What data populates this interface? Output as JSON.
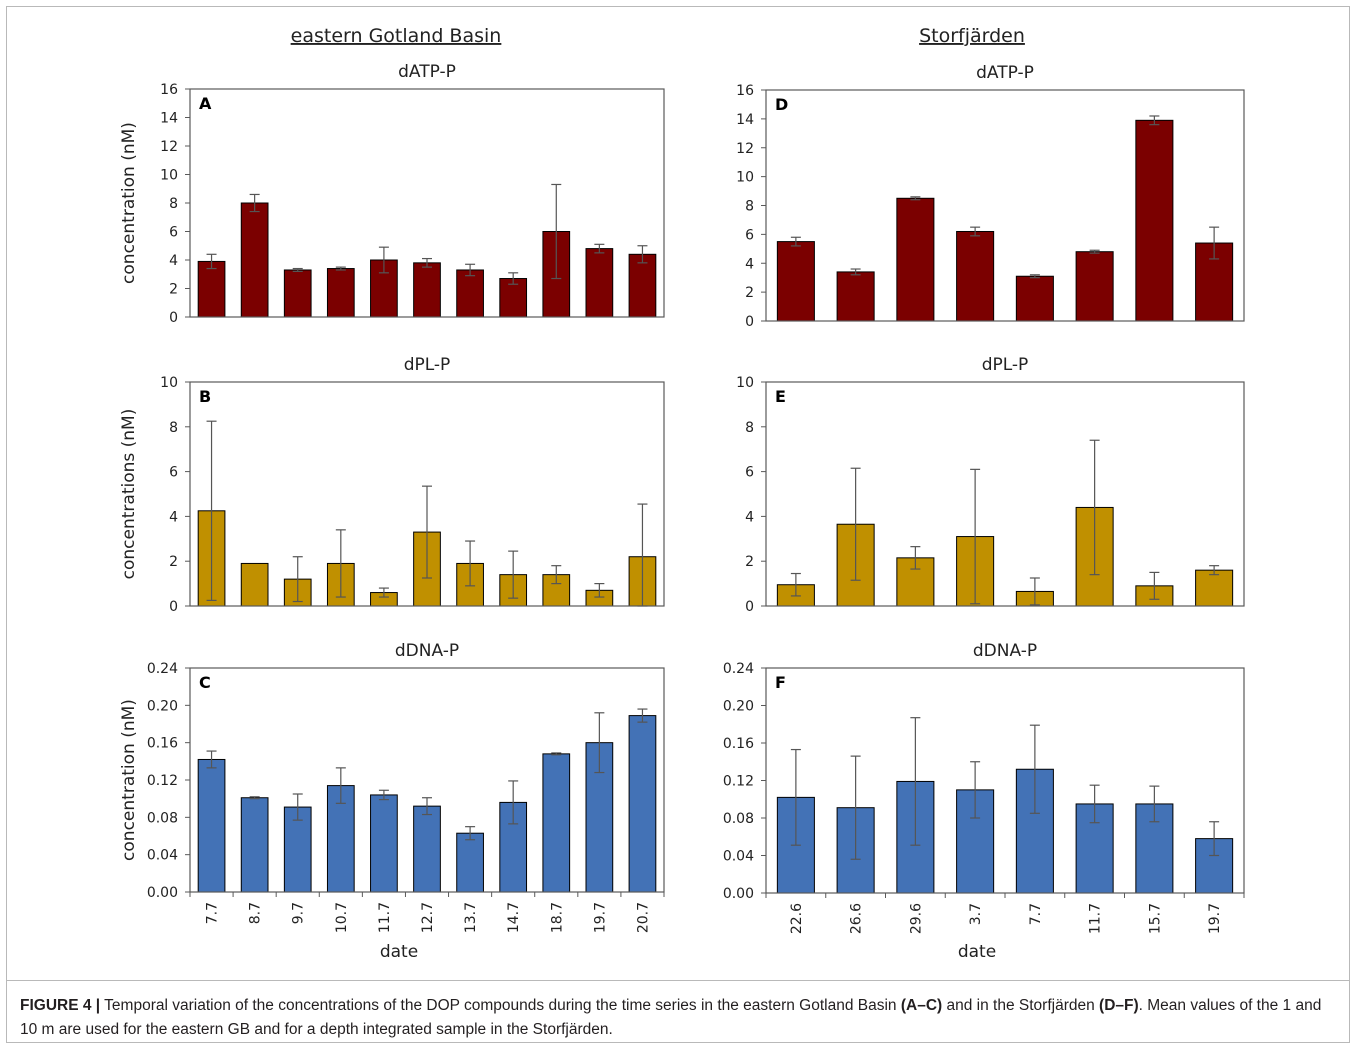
{
  "figure": {
    "group_titles": [
      "eastern Gotland Basin",
      "Storfjärden"
    ],
    "caption": {
      "label": "FIGURE 4 |",
      "text_1": " Temporal variation of the concentrations of the DOP compounds during the time series in the eastern Gotland Basin ",
      "ref_1": "(A–C)",
      "text_2": " and in the Storfjärden ",
      "ref_2": "(D–F)",
      "text_3": ". Mean values of the 1 and 10 m are used for the eastern GB and for a depth integrated sample in the Storfjärden."
    }
  },
  "colors": {
    "dATP": "#7b0000",
    "dPL": "#c09000",
    "dDNA": "#4372b6",
    "error_bar": "#555555",
    "frame": "#b9b9b9"
  },
  "chart_data": [
    {
      "id": "A",
      "panel_label": "A",
      "type": "bar",
      "title": "dATP-P",
      "ylabel": "concentration (nM)",
      "xlabel": "",
      "categories": [
        "7.7",
        "8.7",
        "9.7",
        "10.7",
        "11.7",
        "12.7",
        "13.7",
        "14.7",
        "18.7",
        "19.7",
        "20.7"
      ],
      "values": [
        3.9,
        8.0,
        3.3,
        3.4,
        4.0,
        3.8,
        3.3,
        2.7,
        6.0,
        4.8,
        4.4
      ],
      "errors": [
        0.5,
        0.6,
        0.1,
        0.1,
        0.9,
        0.3,
        0.4,
        0.4,
        3.3,
        0.3,
        0.6
      ],
      "ylim": [
        0,
        16
      ],
      "yticks": [
        "0",
        "2",
        "4",
        "6",
        "8",
        "10",
        "12",
        "14",
        "16"
      ],
      "show_xticks": false,
      "color": "dATP"
    },
    {
      "id": "B",
      "panel_label": "B",
      "type": "bar",
      "title": "dPL-P",
      "ylabel": "concentrations (nM)",
      "xlabel": "",
      "categories": [
        "7.7",
        "8.7",
        "9.7",
        "10.7",
        "11.7",
        "12.7",
        "13.7",
        "14.7",
        "18.7",
        "19.7",
        "20.7"
      ],
      "values": [
        4.25,
        1.9,
        1.2,
        1.9,
        0.6,
        3.3,
        1.9,
        1.4,
        1.4,
        0.7,
        2.2
      ],
      "errors": [
        4.0,
        0.0,
        1.0,
        1.5,
        0.2,
        2.05,
        1.0,
        1.05,
        0.4,
        0.3,
        2.35
      ],
      "ylim": [
        0,
        10
      ],
      "yticks": [
        "0",
        "2",
        "4",
        "6",
        "8",
        "10"
      ],
      "show_xticks": false,
      "color": "dPL"
    },
    {
      "id": "C",
      "panel_label": "C",
      "type": "bar",
      "title": "dDNA-P",
      "ylabel": "concentration (nM)",
      "xlabel": "date",
      "categories": [
        "7.7",
        "8.7",
        "9.7",
        "10.7",
        "11.7",
        "12.7",
        "13.7",
        "14.7",
        "18.7",
        "19.7",
        "20.7"
      ],
      "values": [
        0.142,
        0.101,
        0.091,
        0.114,
        0.104,
        0.092,
        0.063,
        0.096,
        0.148,
        0.16,
        0.189
      ],
      "errors": [
        0.009,
        0.001,
        0.014,
        0.019,
        0.005,
        0.009,
        0.007,
        0.023,
        0.001,
        0.032,
        0.007
      ],
      "ylim": [
        0,
        0.24
      ],
      "yticks": [
        "0.00",
        "0.04",
        "0.08",
        "0.12",
        "0.16",
        "0.20",
        "0.24"
      ],
      "show_xticks": true,
      "color": "dDNA"
    },
    {
      "id": "D",
      "panel_label": "D",
      "type": "bar",
      "title": "dATP-P",
      "ylabel": "",
      "xlabel": "",
      "categories": [
        "22.6",
        "26.6",
        "29.6",
        "3.7",
        "7.7",
        "11.7",
        "15.7",
        "19.7"
      ],
      "values": [
        5.5,
        3.4,
        8.5,
        6.2,
        3.1,
        4.8,
        13.9,
        5.4
      ],
      "errors": [
        0.3,
        0.2,
        0.1,
        0.3,
        0.1,
        0.1,
        0.3,
        1.1
      ],
      "ylim": [
        0,
        16
      ],
      "yticks": [
        "0",
        "2",
        "4",
        "6",
        "8",
        "10",
        "12",
        "14",
        "16"
      ],
      "show_xticks": false,
      "color": "dATP"
    },
    {
      "id": "E",
      "panel_label": "E",
      "type": "bar",
      "title": "dPL-P",
      "ylabel": "",
      "xlabel": "",
      "categories": [
        "22.6",
        "26.6",
        "29.6",
        "3.7",
        "7.7",
        "11.7",
        "15.7",
        "19.7"
      ],
      "values": [
        0.95,
        3.65,
        2.15,
        3.1,
        0.65,
        4.4,
        0.9,
        1.6
      ],
      "errors": [
        0.5,
        2.5,
        0.5,
        3.0,
        0.6,
        3.0,
        0.6,
        0.2
      ],
      "ylim": [
        0,
        10
      ],
      "yticks": [
        "0",
        "2",
        "4",
        "6",
        "8",
        "10"
      ],
      "show_xticks": false,
      "color": "dPL"
    },
    {
      "id": "F",
      "panel_label": "F",
      "type": "bar",
      "title": "dDNA-P",
      "ylabel": "",
      "xlabel": "date",
      "categories": [
        "22.6",
        "26.6",
        "29.6",
        "3.7",
        "7.7",
        "11.7",
        "15.7",
        "19.7"
      ],
      "values": [
        0.102,
        0.091,
        0.119,
        0.11,
        0.132,
        0.095,
        0.095,
        0.058
      ],
      "errors": [
        0.051,
        0.055,
        0.068,
        0.03,
        0.047,
        0.02,
        0.019,
        0.018
      ],
      "ylim": [
        0,
        0.24
      ],
      "yticks": [
        "0.00",
        "0.04",
        "0.08",
        "0.12",
        "0.16",
        "0.20",
        "0.24"
      ],
      "show_xticks": true,
      "color": "dDNA"
    }
  ]
}
